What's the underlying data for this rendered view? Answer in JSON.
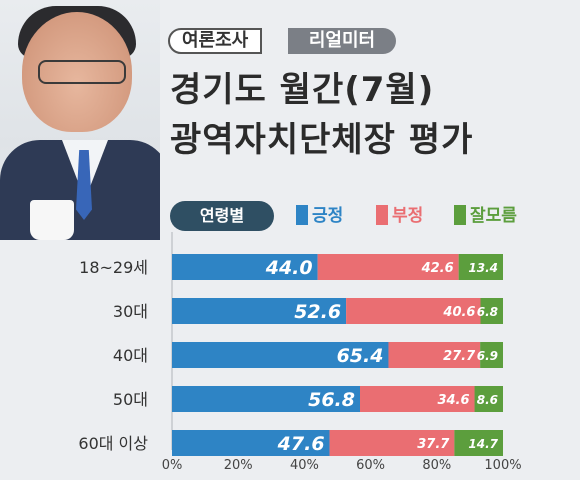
{
  "header": {
    "tag_primary": "여론조사",
    "tag_secondary": "리얼미터",
    "title_line1": "경기도 월간(7월)",
    "title_line2": "광역자치단체장 평가"
  },
  "colors": {
    "positive": "#2e84c5",
    "negative": "#ea6e72",
    "unsure": "#5c9e3d"
  },
  "chart_data": {
    "type": "bar",
    "orientation": "horizontal",
    "stacked": true,
    "group_label": "연령별",
    "categories": [
      "18~29세",
      "30대",
      "40대",
      "50대",
      "60대 이상"
    ],
    "series": [
      {
        "name": "긍정",
        "values": [
          44.0,
          52.6,
          65.4,
          56.8,
          47.6
        ]
      },
      {
        "name": "부정",
        "values": [
          42.6,
          40.6,
          27.7,
          34.6,
          37.7
        ]
      },
      {
        "name": "잘모름",
        "values": [
          13.4,
          6.8,
          6.9,
          8.6,
          14.7
        ]
      }
    ],
    "xlim": [
      0,
      100
    ],
    "xticks": [
      "0%",
      "20%",
      "40%",
      "60%",
      "80%",
      "100%"
    ],
    "legend": "top"
  }
}
